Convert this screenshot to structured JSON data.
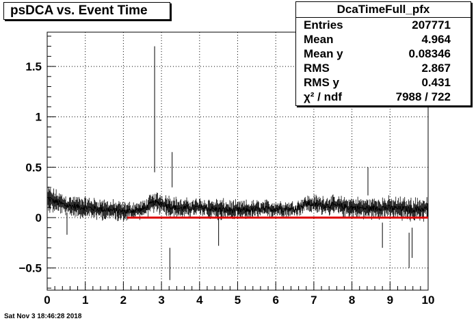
{
  "title": "psDCA vs. Event Time",
  "stats": {
    "name": "DcaTimeFull_pfx",
    "rows": [
      {
        "label": "Entries",
        "value": "207771"
      },
      {
        "label": "Mean",
        "value": "4.964"
      },
      {
        "label": "Mean y",
        "value": "0.08346"
      },
      {
        "label": "RMS",
        "value": "2.867"
      },
      {
        "label": "RMS y",
        "value": "0.431"
      },
      {
        "label": "χ² / ndf",
        "value": "7988 / 722"
      }
    ]
  },
  "footer": "Sat Nov  3 18:46:28 2018",
  "chart_data": {
    "type": "line",
    "title": "psDCA vs. Event Time",
    "xlabel": "",
    "ylabel": "",
    "xlim": [
      0,
      10
    ],
    "ylim": [
      -0.72,
      1.84
    ],
    "grid": true,
    "x_ticks": [
      0,
      1,
      2,
      3,
      4,
      5,
      6,
      7,
      8,
      9,
      10
    ],
    "x_tick_labels": [
      "0",
      "1",
      "2",
      "3",
      "4",
      "5",
      "6",
      "7",
      "8",
      "9",
      "10"
    ],
    "y_ticks": [
      -0.5,
      0,
      0.5,
      1,
      1.5
    ],
    "y_tick_labels": [
      "−0.5",
      "0",
      "0.5",
      "1",
      "1.5"
    ],
    "series": [
      {
        "kind": "profile",
        "color": "#000000",
        "x": [
          0.05,
          0.5,
          1.0,
          1.5,
          2.0,
          2.5,
          2.8,
          3.0,
          3.25,
          3.5,
          4.0,
          4.5,
          5.0,
          5.5,
          6.0,
          6.5,
          6.8,
          7.0,
          7.5,
          8.0,
          8.4,
          8.8,
          9.2,
          9.6,
          10.0
        ],
        "y": [
          0.18,
          0.12,
          0.1,
          0.08,
          0.06,
          0.08,
          0.15,
          0.14,
          0.11,
          0.09,
          0.1,
          0.08,
          0.07,
          0.08,
          0.09,
          0.08,
          0.14,
          0.13,
          0.12,
          0.1,
          0.09,
          0.1,
          0.09,
          0.08,
          0.09
        ],
        "err": [
          0.1,
          0.08,
          0.08,
          0.08,
          0.07,
          0.06,
          0.08,
          0.08,
          0.09,
          0.07,
          0.07,
          0.08,
          0.07,
          0.07,
          0.06,
          0.06,
          0.06,
          0.07,
          0.07,
          0.08,
          0.08,
          0.08,
          0.09,
          0.09,
          0.09
        ]
      },
      {
        "kind": "fit",
        "color": "#dd0000",
        "x": [
          2.1,
          10.0
        ],
        "y": [
          0.0,
          0.0
        ]
      }
    ],
    "spikes": [
      {
        "x": 2.82,
        "y1": 0.45,
        "y2": 1.7
      },
      {
        "x": 3.28,
        "y1": 0.3,
        "y2": 0.65
      },
      {
        "x": 3.22,
        "y1": -0.62,
        "y2": -0.3
      },
      {
        "x": 8.42,
        "y1": 0.22,
        "y2": 0.5
      },
      {
        "x": 9.5,
        "y1": -0.5,
        "y2": -0.15
      },
      {
        "x": 9.58,
        "y1": -0.4,
        "y2": -0.1
      },
      {
        "x": 8.8,
        "y1": -0.3,
        "y2": -0.05
      },
      {
        "x": 0.52,
        "y1": -0.17,
        "y2": 0.05
      },
      {
        "x": 4.5,
        "y1": -0.28,
        "y2": 0.0
      }
    ]
  }
}
